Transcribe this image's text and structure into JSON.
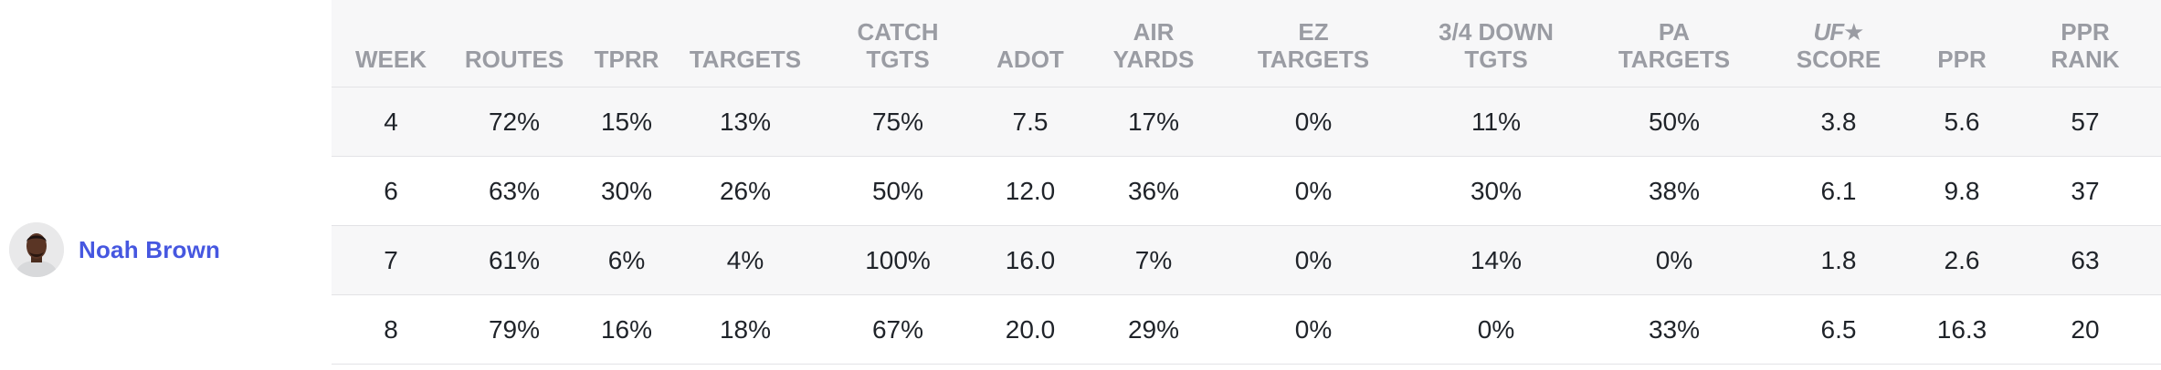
{
  "player": {
    "name": "Noah Brown"
  },
  "columns": [
    {
      "line1": "",
      "line2": "WEEK",
      "logo": false
    },
    {
      "line1": "",
      "line2": "ROUTES",
      "logo": false
    },
    {
      "line1": "",
      "line2": "TPRR",
      "logo": false
    },
    {
      "line1": "",
      "line2": "TARGETS",
      "logo": false
    },
    {
      "line1": "CATCH",
      "line2": "TGTS",
      "logo": false
    },
    {
      "line1": "",
      "line2": "ADOT",
      "logo": false
    },
    {
      "line1": "AIR",
      "line2": "YARDS",
      "logo": false
    },
    {
      "line1": "EZ",
      "line2": "TARGETS",
      "logo": false
    },
    {
      "line1": "3/4 DOWN",
      "line2": "TGTS",
      "logo": false
    },
    {
      "line1": "PA",
      "line2": "TARGETS",
      "logo": false
    },
    {
      "line1": "UF★",
      "line2": "SCORE",
      "logo": true
    },
    {
      "line1": "",
      "line2": "PPR",
      "logo": false
    },
    {
      "line1": "PPR",
      "line2": "RANK",
      "logo": false
    }
  ],
  "rows": [
    [
      "4",
      "72%",
      "15%",
      "13%",
      "75%",
      "7.5",
      "17%",
      "0%",
      "11%",
      "50%",
      "3.8",
      "5.6",
      "57"
    ],
    [
      "6",
      "63%",
      "30%",
      "26%",
      "50%",
      "12.0",
      "36%",
      "0%",
      "30%",
      "38%",
      "6.1",
      "9.8",
      "37"
    ],
    [
      "7",
      "61%",
      "6%",
      "4%",
      "100%",
      "16.0",
      "7%",
      "0%",
      "14%",
      "0%",
      "1.8",
      "2.6",
      "63"
    ],
    [
      "8",
      "79%",
      "16%",
      "18%",
      "67%",
      "20.0",
      "29%",
      "0%",
      "0%",
      "33%",
      "6.5",
      "16.3",
      "20"
    ]
  ],
  "colors": {
    "name_link": "#4657e0",
    "header_text": "#9a9ca3",
    "cell_text": "#1f2329",
    "stripe": "#f7f7f8"
  }
}
